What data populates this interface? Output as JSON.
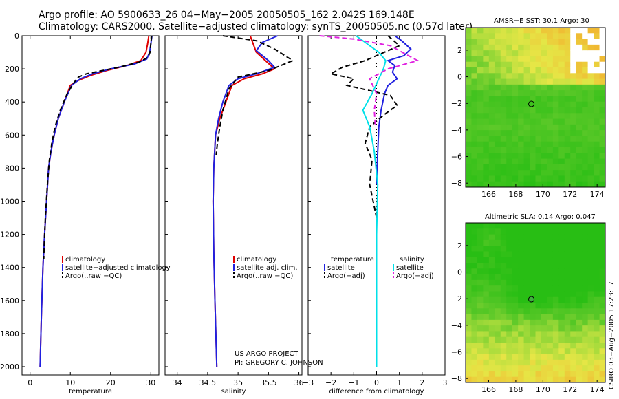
{
  "header": {
    "line1": "Argo profile: AO 5900633_26 04−May−2005 20050505_162 2.042S 169.148E",
    "line2": "Climatology: CARS2000. Satellite−adjusted climatology: synTS_20050505.nc (0.57d later)"
  },
  "credit": {
    "line1": "US ARGO PROJECT",
    "line2": "PI: GREGORY C. JOHNSON"
  },
  "stamp": "CSIRO 03−Aug−2005 17:23:17",
  "colors": {
    "climatology": "#e00000",
    "satellite": "#2020e0",
    "argo": "#000000",
    "sal_satellite": "#00e0e8",
    "sal_argo": "#e020e0",
    "map_green": "#38c020",
    "map_yellow": "#e8e850",
    "map_orange": "#f0c030"
  },
  "chart_data": [
    {
      "id": "temperature",
      "type": "line",
      "xlabel": "temperature",
      "ylabel": "",
      "xlim": [
        -2,
        32
      ],
      "ylim": [
        2050,
        0
      ],
      "xticks": [
        "0",
        "10",
        "20",
        "30"
      ],
      "xtick_values": [
        0,
        10,
        20,
        30
      ],
      "yticks": [
        "0",
        "200",
        "400",
        "600",
        "800",
        "1000",
        "1200",
        "1400",
        "1600",
        "1800",
        "2000"
      ],
      "ytick_values": [
        0,
        200,
        400,
        600,
        800,
        1000,
        1200,
        1400,
        1600,
        1800,
        2000
      ],
      "legend": [
        "climatology",
        "satellite−adjusted climatology",
        "Argo(..raw −QC)"
      ],
      "series": [
        {
          "name": "climatology",
          "color": "#e00000",
          "dash": false,
          "x": [
            29.5,
            29.2,
            28.8,
            27.5,
            24,
            19,
            15,
            12,
            10,
            8.5,
            7,
            6,
            5.2,
            4.6,
            4.1,
            3.6,
            3.2,
            2.8,
            2.5
          ],
          "y": [
            0,
            50,
            100,
            150,
            180,
            210,
            240,
            270,
            300,
            400,
            500,
            600,
            700,
            800,
            1000,
            1200,
            1400,
            1700,
            2000
          ]
        },
        {
          "name": "satellite",
          "color": "#2020e0",
          "dash": false,
          "x": [
            30.3,
            30,
            29.7,
            29,
            26,
            20,
            15.5,
            12.5,
            10.3,
            8.5,
            7,
            6,
            5.2,
            4.6,
            4.1,
            3.6,
            3.2,
            2.8,
            2.5
          ],
          "y": [
            0,
            50,
            100,
            140,
            170,
            200,
            230,
            260,
            300,
            400,
            500,
            600,
            700,
            800,
            1000,
            1200,
            1400,
            1700,
            2000
          ]
        },
        {
          "name": "argo",
          "color": "#000000",
          "dash": true,
          "x": [
            30.2,
            30,
            29.8,
            29.3,
            27,
            22,
            18,
            14,
            12,
            11,
            9.2,
            7.5,
            6.2,
            5.4,
            4.8,
            4.3,
            3.8,
            3.4
          ],
          "y": [
            0,
            50,
            100,
            130,
            160,
            190,
            210,
            230,
            250,
            280,
            350,
            450,
            550,
            650,
            750,
            900,
            1100,
            1350
          ]
        }
      ]
    },
    {
      "id": "salinity",
      "type": "line",
      "xlabel": "salinity",
      "xlim": [
        33.8,
        36.05
      ],
      "ylim": [
        2050,
        0
      ],
      "xticks": [
        "34",
        "34.5",
        "35",
        "35.5",
        "36"
      ],
      "xtick_values": [
        34,
        34.5,
        35,
        35.5,
        36
      ],
      "legend": [
        "climatology",
        "satellite adj. clim.",
        "Argo(..raw −QC)"
      ],
      "series": [
        {
          "name": "climatology",
          "color": "#e00000",
          "dash": false,
          "x": [
            35.2,
            35.25,
            35.3,
            35.45,
            35.6,
            35.4,
            35.1,
            34.9,
            34.8,
            34.7,
            34.63,
            34.6,
            34.59,
            34.6,
            34.62,
            34.65
          ],
          "y": [
            0,
            50,
            100,
            150,
            200,
            230,
            260,
            300,
            400,
            500,
            600,
            800,
            1000,
            1300,
            1600,
            2000
          ]
        },
        {
          "name": "satellite",
          "color": "#2020e0",
          "dash": false,
          "x": [
            35.65,
            35.4,
            35.3,
            35.5,
            35.6,
            35.3,
            35.0,
            34.85,
            34.75,
            34.68,
            34.63,
            34.6,
            34.59,
            34.6,
            34.62,
            34.65
          ],
          "y": [
            0,
            40,
            90,
            150,
            190,
            230,
            260,
            300,
            400,
            500,
            600,
            800,
            1000,
            1300,
            1600,
            2000
          ]
        },
        {
          "name": "argo",
          "color": "#000000",
          "dash": true,
          "x": [
            34.75,
            35.3,
            35.6,
            35.9,
            35.5,
            35.0,
            34.85,
            34.75,
            34.7,
            34.66,
            34.64
          ],
          "y": [
            0,
            30,
            80,
            150,
            210,
            250,
            320,
            450,
            550,
            650,
            720
          ]
        }
      ]
    },
    {
      "id": "difference",
      "type": "line",
      "xlabel": "difference from climatology",
      "xlim": [
        -3,
        3
      ],
      "ylim": [
        2050,
        0
      ],
      "xticks": [
        "−3",
        "−2",
        "−1",
        "0",
        "1",
        "2",
        "3"
      ],
      "xtick_values": [
        -3,
        -2,
        -1,
        0,
        1,
        2,
        3
      ],
      "legend_left": [
        "temperature",
        "satellite",
        "Argo(−adj)"
      ],
      "legend_right": [
        "salinity",
        "satellite",
        "Argo(−adj)"
      ],
      "series": [
        {
          "name": "temperature satellite",
          "color": "#2020e0",
          "dash": false,
          "x": [
            0.8,
            1.1,
            1.5,
            1.2,
            0.5,
            0.8,
            0.7,
            0.9,
            0.5,
            0.35,
            0.2,
            0.1,
            0.05,
            0
          ],
          "y": [
            0,
            30,
            80,
            120,
            150,
            180,
            220,
            260,
            300,
            350,
            450,
            550,
            700,
            900
          ]
        },
        {
          "name": "temperature argo",
          "color": "#000000",
          "dash": true,
          "x": [
            0.5,
            1.0,
            -0.5,
            -1.5,
            -2.0,
            -1.0,
            -1.3,
            0.6,
            0.9,
            0.3,
            -0.3,
            -0.5,
            -0.2,
            -0.3,
            0
          ],
          "y": [
            0,
            60,
            150,
            190,
            230,
            260,
            300,
            360,
            420,
            480,
            550,
            650,
            750,
            900,
            1100
          ]
        },
        {
          "name": "salinity satellite",
          "color": "#00e0e8",
          "dash": false,
          "x": [
            -0.9,
            -0.4,
            0.1,
            0.4,
            0.3,
            0.1,
            -0.2,
            -0.6,
            -0.3,
            -0.1,
            0.05,
            0,
            0,
            0
          ],
          "y": [
            0,
            50,
            100,
            150,
            200,
            260,
            350,
            450,
            550,
            700,
            900,
            1200,
            1600,
            2000
          ]
        },
        {
          "name": "salinity argo",
          "color": "#e020e0",
          "dash": true,
          "x": [
            -2.5,
            -1.0,
            0.6,
            1.8,
            0.5,
            -0.3,
            0.0,
            -0.1,
            -0.05
          ],
          "y": [
            0,
            20,
            60,
            150,
            200,
            260,
            350,
            450,
            550
          ]
        }
      ]
    },
    {
      "id": "sst-map",
      "type": "heatmap",
      "title": "AMSR−E SST: 30.1 Argo: 30",
      "xticks": [
        "166",
        "168",
        "170",
        "172",
        "174"
      ],
      "xtick_values": [
        166,
        168,
        170,
        172,
        174
      ],
      "yticks": [
        "2",
        "0",
        "−2",
        "−4",
        "−6",
        "−8"
      ],
      "ytick_values": [
        2,
        0,
        -2,
        -4,
        -6,
        -8
      ],
      "xlim": [
        164.3,
        174.6
      ],
      "ylim": [
        -8.3,
        3.7
      ],
      "marker": {
        "lon": 169.148,
        "lat": -2.042
      }
    },
    {
      "id": "sla-map",
      "type": "heatmap",
      "title": "Altimetric SLA: 0.14 Argo: 0.047",
      "xticks": [
        "166",
        "168",
        "170",
        "172",
        "174"
      ],
      "xtick_values": [
        166,
        168,
        170,
        172,
        174
      ],
      "yticks": [
        "2",
        "0",
        "−2",
        "−4",
        "−6",
        "−8"
      ],
      "ytick_values": [
        2,
        0,
        -2,
        -4,
        -6,
        -8
      ],
      "xlim": [
        164.3,
        174.6
      ],
      "ylim": [
        -8.3,
        3.7
      ],
      "marker": {
        "lon": 169.148,
        "lat": -2.042
      }
    }
  ]
}
